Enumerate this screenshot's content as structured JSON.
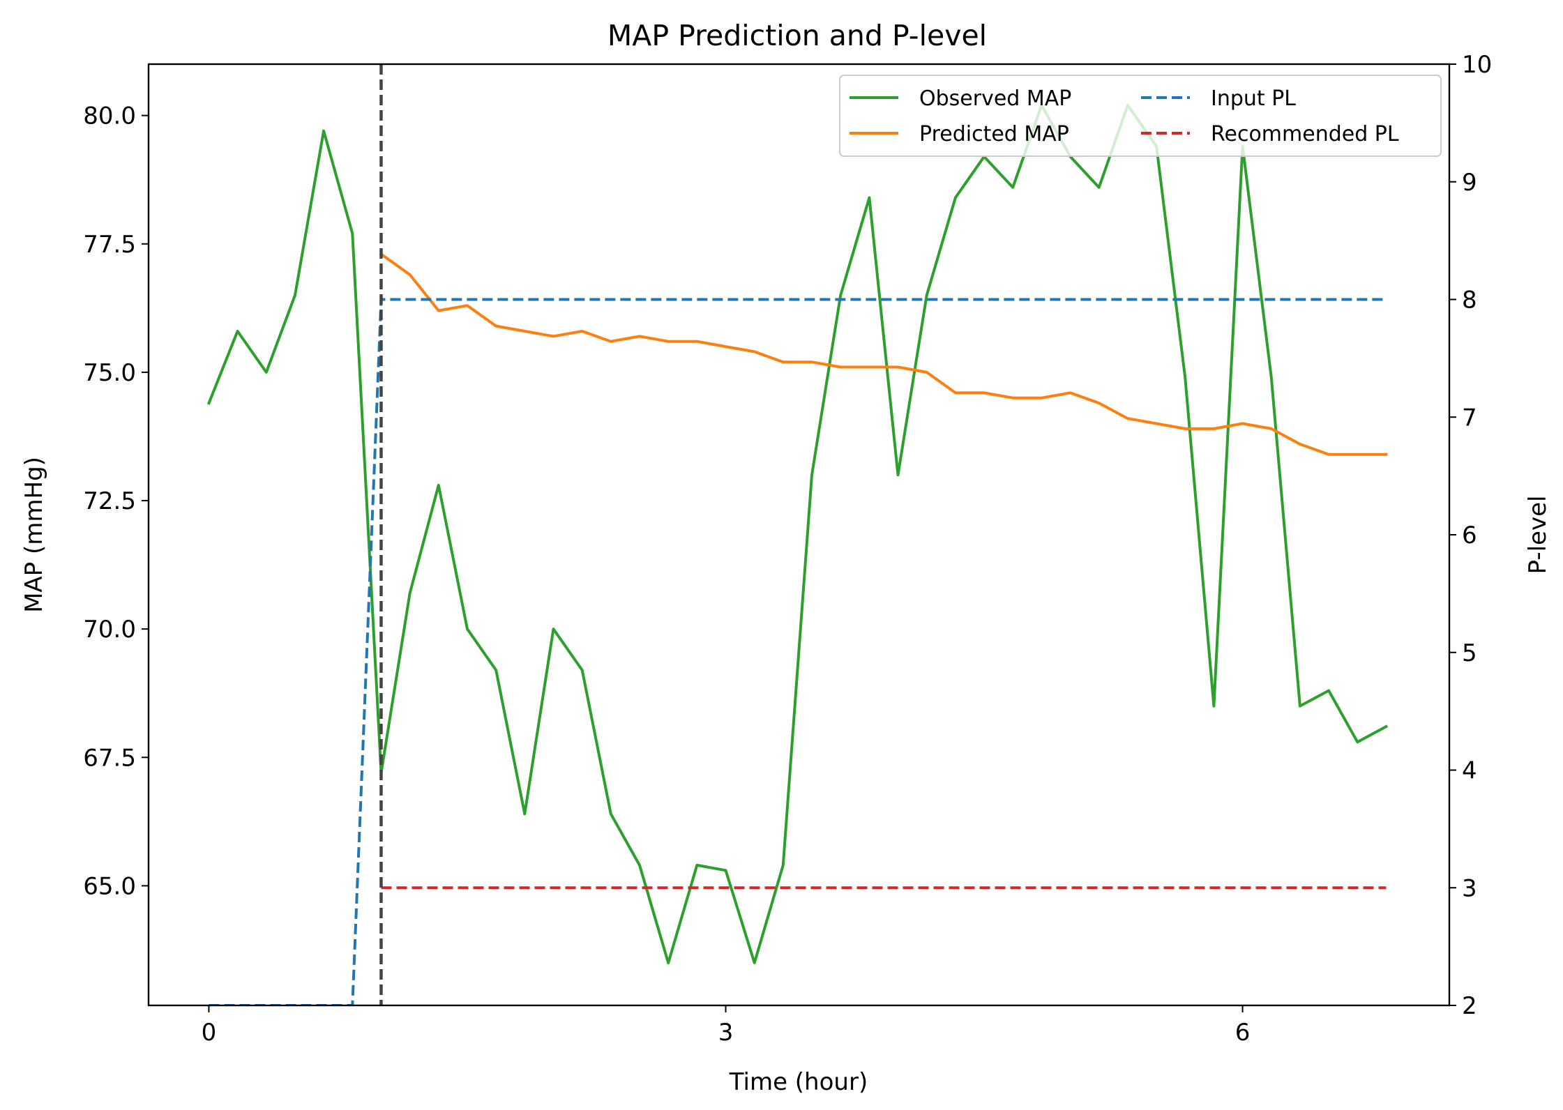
{
  "chart_data": {
    "type": "line",
    "title": "MAP Prediction and P-level",
    "xlabel": "Time (hour)",
    "ylabel": "MAP (mmHg)",
    "y2label": "P-level",
    "xlim": [
      -0.35,
      7.2
    ],
    "ylim": [
      62.67,
      81.0
    ],
    "y2lim": [
      2,
      10
    ],
    "xticks": [
      0,
      3,
      6
    ],
    "xtick_labels": [
      "0",
      "3",
      "6"
    ],
    "yticks": [
      65.0,
      67.5,
      70.0,
      72.5,
      75.0,
      77.5,
      80.0
    ],
    "ytick_labels": [
      "65.0",
      "67.5",
      "70.0",
      "72.5",
      "75.0",
      "77.5",
      "80.0"
    ],
    "y2ticks": [
      2,
      3,
      4,
      5,
      6,
      7,
      8,
      9,
      10
    ],
    "y2tick_labels": [
      "2",
      "3",
      "4",
      "5",
      "6",
      "7",
      "8",
      "9",
      "10"
    ],
    "vline_x": 1.0,
    "legend_position": "top-right",
    "series": [
      {
        "name": "Observed MAP",
        "axis": "left",
        "style": "solid",
        "color": "#2ca02c",
        "x": [
          0,
          0.1667,
          0.3333,
          0.5,
          0.6667,
          0.8333,
          1.0,
          1.1667,
          1.3333,
          1.5,
          1.6667,
          1.8333,
          2.0,
          2.1667,
          2.3333,
          2.5,
          2.6667,
          2.8333,
          3.0,
          3.1667,
          3.3333,
          3.5,
          3.6667,
          3.8333,
          4.0,
          4.1667,
          4.3333,
          4.5,
          4.6667,
          4.8333,
          5.0,
          5.1667,
          5.3333,
          5.5,
          5.6667,
          5.8333,
          6.0,
          6.1667,
          6.3333,
          6.5,
          6.6667,
          6.8333
        ],
        "values": [
          74.4,
          75.8,
          75.0,
          76.5,
          79.7,
          77.7,
          67.2,
          70.7,
          72.8,
          70.0,
          69.2,
          66.4,
          70.0,
          69.2,
          66.4,
          65.4,
          63.5,
          65.4,
          65.3,
          63.5,
          65.4,
          73.0,
          76.5,
          78.4,
          73.0,
          76.5,
          78.4,
          79.2,
          78.6,
          80.2,
          79.2,
          78.6,
          80.2,
          79.4,
          74.9,
          68.5,
          79.4,
          74.9,
          68.5,
          68.8,
          67.8,
          68.1
        ]
      },
      {
        "name": "Predicted MAP",
        "axis": "left",
        "style": "solid",
        "color": "#ff7f0e",
        "x": [
          1.0,
          1.1667,
          1.3333,
          1.5,
          1.6667,
          1.8333,
          2.0,
          2.1667,
          2.3333,
          2.5,
          2.6667,
          2.8333,
          3.0,
          3.1667,
          3.3333,
          3.5,
          3.6667,
          3.8333,
          4.0,
          4.1667,
          4.3333,
          4.5,
          4.6667,
          4.8333,
          5.0,
          5.1667,
          5.3333,
          5.5,
          5.6667,
          5.8333,
          6.0,
          6.1667,
          6.3333,
          6.5,
          6.6667,
          6.8333
        ],
        "values": [
          77.3,
          76.9,
          76.2,
          76.3,
          75.9,
          75.8,
          75.7,
          75.8,
          75.6,
          75.7,
          75.6,
          75.6,
          75.5,
          75.4,
          75.2,
          75.2,
          75.1,
          75.1,
          75.1,
          75.0,
          74.6,
          74.6,
          74.5,
          74.5,
          74.6,
          74.4,
          74.1,
          74.0,
          73.9,
          73.9,
          74.0,
          73.9,
          73.6,
          73.4,
          73.4,
          73.4
        ]
      },
      {
        "name": "Input PL",
        "axis": "right",
        "style": "dashed",
        "color": "#1f77b4",
        "x": [
          0,
          0.8333,
          1.0,
          6.8333
        ],
        "values": [
          2,
          2,
          8,
          8
        ]
      },
      {
        "name": "Recommended PL",
        "axis": "right",
        "style": "dashed",
        "color": "#d62728",
        "x": [
          1.0,
          6.8333
        ],
        "values": [
          3,
          3
        ]
      }
    ]
  }
}
